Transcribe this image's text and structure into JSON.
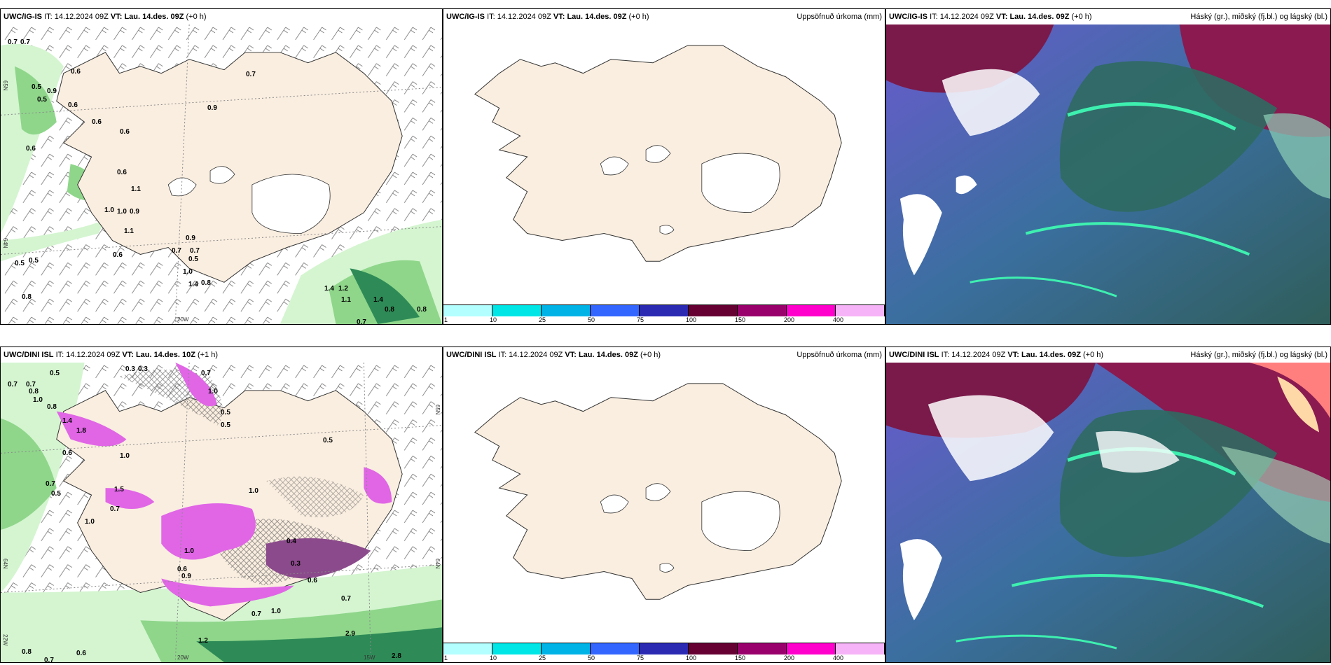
{
  "panels": {
    "p1": {
      "model": "UWC/IG-IS",
      "it_label": "IT:",
      "it_value": "14.12.2024 09Z",
      "vt_label": "VT:",
      "vt_value": "Lau. 14.des. 09Z",
      "lead": "(+0 h)"
    },
    "p2": {
      "model": "UWC/IG-IS",
      "it_label": "IT:",
      "it_value": "14.12.2024 09Z",
      "vt_label": "VT:",
      "vt_value": "Lau. 14.des. 09Z",
      "lead": "(+0 h)",
      "right_title": "Uppsöfnuð úrkoma (mm)"
    },
    "p3": {
      "model": "UWC/IG-IS",
      "it_label": "IT:",
      "it_value": "14.12.2024 09Z",
      "vt_label": "VT:",
      "vt_value": "Lau. 14.des. 09Z",
      "lead": "(+0 h)",
      "right_title": "Háský (gr.), miðský (fj.bl.) og lágský (bl.)"
    },
    "p4": {
      "model": "UWC/DINI ISL",
      "it_label": "IT:",
      "it_value": "14.12.2024 09Z",
      "vt_label": "VT:",
      "vt_value": "Lau. 14.des. 10Z",
      "lead": "(+1 h)"
    },
    "p5": {
      "model": "UWC/DINI ISL",
      "it_label": "IT:",
      "it_value": "14.12.2024 09Z",
      "vt_label": "VT:",
      "vt_value": "Lau. 14.des. 09Z",
      "lead": "(+0 h)",
      "right_title": "Uppsöfnuð úrkoma (mm)"
    },
    "p6": {
      "model": "UWC/DINI ISL",
      "it_label": "IT:",
      "it_value": "14.12.2024 09Z",
      "vt_label": "VT:",
      "vt_value": "Lau. 14.des. 09Z",
      "lead": "(+0 h)",
      "right_title": "Háský (gr.), miðský (fj.bl.) og lágský (bl.)"
    }
  },
  "axis": {
    "n65": "65N",
    "n64": "64N",
    "w20": "20W",
    "w22": "22W",
    "w15": "15W"
  },
  "colorbar": {
    "ticks": [
      "1",
      "10",
      "25",
      "50",
      "75",
      "100",
      "150",
      "200",
      "400"
    ],
    "colors": [
      "#b3ffff",
      "#00e6e6",
      "#00b3e6",
      "#3366ff",
      "#2a2ab3",
      "#660033",
      "#99006b",
      "#ff00cc",
      "#f7b3f7"
    ]
  },
  "p1_values": [
    "0.7",
    "0.7",
    "0.6",
    "0.5",
    "0.9",
    "0.5",
    "0.6",
    "0.6",
    "0.6",
    "0.7",
    "0.9",
    "0.6",
    "0.6",
    "1.0",
    "1.1",
    "1.0",
    "0.9",
    "1.1",
    "0.5",
    "0.5",
    "0.8",
    "0.6",
    "0.9",
    "0.7",
    "0.7",
    "0.5",
    "1.0",
    "1.4",
    "0.8",
    "1.4",
    "1.2",
    "1.1",
    "1.4",
    "0.8",
    "0.8",
    "0.7"
  ],
  "p4_values": [
    "0.7",
    "0.7",
    "0.8",
    "0.5",
    "0.3",
    "0.3",
    "0.7",
    "1.0",
    "0.8",
    "1.0",
    "1.4",
    "1.8",
    "1.0",
    "0.6",
    "0.7",
    "0.5",
    "1.5",
    "1.0",
    "0.7",
    "1.0",
    "0.5",
    "0.5",
    "0.5",
    "0.6",
    "0.9",
    "1.0",
    "0.4",
    "0.3",
    "0.6",
    "0.7",
    "1.0",
    "0.7",
    "2.9",
    "2.8",
    "0.8",
    "0.7",
    "0.6",
    "1.2"
  ],
  "colors": {
    "land": "#faeee0",
    "sea": "#ffffff",
    "green_light": "#d4f5d0",
    "green_mid": "#8fd68b",
    "green_dark": "#2e8b57",
    "magenta": "#e066e6",
    "purple": "#8b4a8b"
  }
}
